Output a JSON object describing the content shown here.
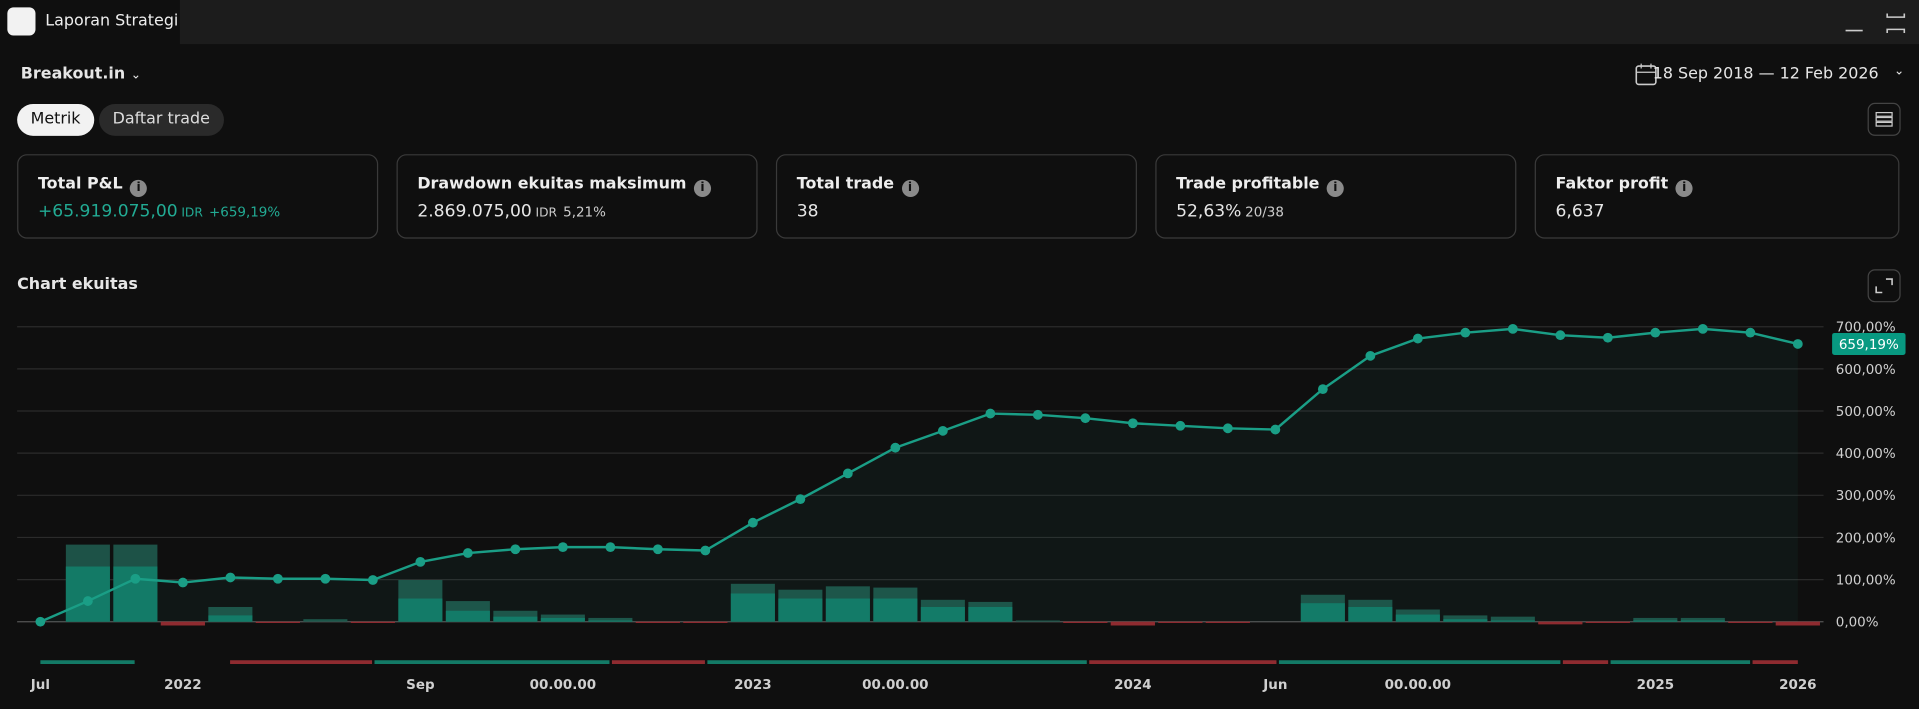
{
  "window": {
    "title": "Laporan Strategi"
  },
  "toolbar": {
    "strategy": "Breakout.in",
    "date_range": "18 Sep 2018 — 12 Feb 2026"
  },
  "tabs": [
    "Metrik",
    "Daftar trade"
  ],
  "metrics": [
    {
      "label": "Total P&L",
      "value": "+65.919.075,00",
      "unit": "IDR",
      "extra": "+659,19%"
    },
    {
      "label": "Drawdown ekuitas maksimum",
      "value": "2.869.075,00",
      "unit": "IDR",
      "extra": "5,21%"
    },
    {
      "label": "Total trade",
      "value": "38"
    },
    {
      "label": "Trade profitable",
      "value": "52,63%",
      "extra": "20/38"
    },
    {
      "label": "Faktor profit",
      "value": "6,637"
    }
  ],
  "chart_data": {
    "type": "line",
    "title": "Chart ekuitas",
    "categories": [
      "Jul",
      null,
      null,
      "2022",
      null,
      null,
      null,
      null,
      "Sep",
      null,
      null,
      "00.00.00",
      null,
      null,
      null,
      "2023",
      null,
      null,
      "00.00.00",
      null,
      null,
      null,
      null,
      "2024",
      null,
      null,
      "Jun",
      null,
      null,
      "00.00.00",
      null,
      null,
      null,
      null,
      "2025",
      null,
      null,
      "2026"
    ],
    "ylim": [
      0,
      700
    ],
    "yticks": [
      {
        "value": 0,
        "label": "0,00%"
      },
      {
        "value": 100,
        "label": "100,00%"
      },
      {
        "value": 200,
        "label": "200,00%"
      },
      {
        "value": 300,
        "label": "300,00%"
      },
      {
        "value": 400,
        "label": "400,00%"
      },
      {
        "value": 500,
        "label": "500,00%"
      },
      {
        "value": 600,
        "label": "600,00%"
      },
      {
        "value": 700,
        "label": "700,00%"
      }
    ],
    "grid": true,
    "negative_color": "#8f2b30",
    "series": [
      {
        "type": "bar",
        "color": "#1d5247",
        "values": [
          0,
          183,
          183,
          -9,
          35,
          -3,
          6,
          -3,
          99,
          49,
          26,
          17,
          9,
          -3,
          -3,
          90,
          76,
          84,
          81,
          52,
          47,
          3,
          -3,
          -9,
          -3,
          -3,
          0,
          64,
          52,
          29,
          15,
          12,
          -6,
          -3,
          9,
          9,
          -3,
          -9
        ]
      },
      {
        "type": "bar",
        "color": "#137a66",
        "values": [
          0,
          131,
          131,
          -9,
          15,
          -3,
          0,
          -3,
          55,
          26,
          12,
          9,
          3,
          -3,
          -3,
          67,
          55,
          55,
          55,
          35,
          35,
          0,
          -3,
          -9,
          -3,
          -3,
          0,
          44,
          35,
          17,
          6,
          3,
          -6,
          -3,
          3,
          3,
          -3,
          -9
        ]
      },
      {
        "type": "line",
        "color": "#1a9e86",
        "values": [
          0,
          49,
          102,
          93,
          105,
          102,
          102,
          99,
          142,
          163,
          172,
          177,
          177,
          172,
          169,
          235,
          291,
          352,
          413,
          453,
          494,
          491,
          483,
          471,
          465,
          459,
          456,
          552,
          631,
          672,
          686,
          695,
          680,
          674,
          686,
          695,
          686,
          659.19
        ],
        "value_labels": [
          null,
          null,
          null,
          null,
          null,
          null,
          null,
          null,
          null,
          null,
          null,
          null,
          null,
          null,
          null,
          null,
          null,
          null,
          null,
          null,
          null,
          null,
          null,
          null,
          null,
          null,
          null,
          null,
          null,
          null,
          null,
          null,
          null,
          null,
          null,
          null,
          null,
          "659,19%"
        ]
      }
    ]
  }
}
